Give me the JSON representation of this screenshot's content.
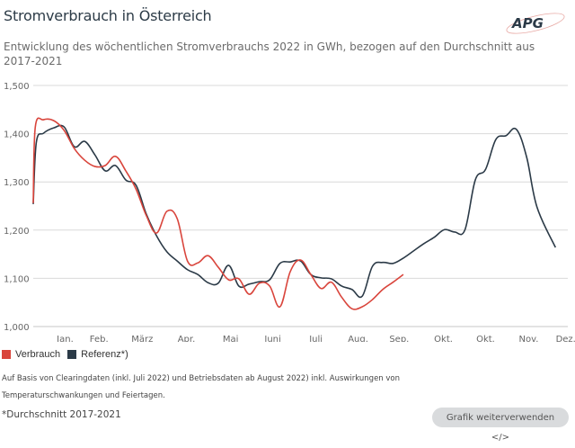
{
  "header": {
    "title": "Stromverbrauch in Österreich",
    "subtitle": "Entwicklung des wöchentlichen Stromverbrauchs 2022 in GWh, bezogen auf den Durchschnitt aus 2017-2021",
    "logo_text": "APG"
  },
  "chart_data": {
    "type": "line",
    "title": "Stromverbrauch in Österreich",
    "xlabel": "",
    "ylabel": "GWh",
    "ylim": [
      1000,
      1500
    ],
    "yticks": [
      1000,
      1100,
      1200,
      1300,
      1400,
      1500
    ],
    "ytick_labels": [
      "1,000",
      "1,100",
      "1,200",
      "1,300",
      "1,400",
      "1,500"
    ],
    "xlim_weeks": [
      0,
      52
    ],
    "xtick_labels": [
      "Jan.",
      "Feb.",
      "März",
      "Apr.",
      "Mai",
      "Juni",
      "Juli",
      "Aug.",
      "Sep.",
      "Okt.",
      "Okt.",
      "Nov.",
      "Dez."
    ],
    "xtick_weeks": [
      3.1,
      6.4,
      10.6,
      14.9,
      19.2,
      23.3,
      27.5,
      31.6,
      35.6,
      39.9,
      44,
      48.2,
      51.8
    ],
    "grid": true,
    "legend_position": "bottom-left",
    "series": [
      {
        "name": "Verbrauch",
        "color": "#d9453c",
        "weeks": [
          0,
          0.2,
          1,
          2,
          3,
          4,
          5,
          6,
          7,
          8,
          9,
          10,
          11,
          12,
          13,
          14,
          15,
          16,
          17,
          18,
          19,
          20,
          21,
          22,
          23,
          24,
          25,
          26,
          27,
          28,
          29,
          30,
          31,
          32,
          33,
          34,
          35,
          36
        ],
        "values": [
          1256,
          1414,
          1429,
          1427,
          1407,
          1369,
          1345,
          1332,
          1334,
          1353,
          1323,
          1285,
          1230,
          1194,
          1239,
          1224,
          1136,
          1132,
          1147,
          1123,
          1097,
          1099,
          1067,
          1090,
          1084,
          1041,
          1114,
          1138,
          1108,
          1079,
          1092,
          1061,
          1037,
          1041,
          1056,
          1077,
          1092,
          1108
        ]
      },
      {
        "name": "Referenz*)",
        "color": "#2b3a47",
        "weeks": [
          0,
          0.3,
          1,
          2,
          3,
          4,
          5,
          6,
          7,
          8,
          9,
          10,
          11,
          12,
          13,
          14,
          15,
          16,
          17,
          18,
          19,
          20,
          21,
          22,
          23,
          24,
          25,
          26,
          27,
          28,
          29,
          30,
          31,
          32,
          33,
          34,
          35,
          36,
          37,
          38,
          39,
          40,
          41,
          42,
          43,
          44,
          45,
          46,
          47,
          48,
          49,
          50.8
        ],
        "values": [
          1254,
          1382,
          1401,
          1412,
          1414,
          1373,
          1384,
          1356,
          1323,
          1334,
          1304,
          1293,
          1233,
          1188,
          1155,
          1136,
          1118,
          1108,
          1091,
          1090,
          1127,
          1084,
          1088,
          1093,
          1097,
          1131,
          1134,
          1136,
          1108,
          1101,
          1099,
          1084,
          1077,
          1063,
          1125,
          1133,
          1131,
          1142,
          1157,
          1172,
          1185,
          1201,
          1196,
          1201,
          1304,
          1326,
          1388,
          1396,
          1409,
          1351,
          1248,
          1164
        ]
      }
    ]
  },
  "legend": [
    {
      "label": "Verbrauch",
      "color": "#d9453c"
    },
    {
      "label": "Referenz*)",
      "color": "#2b3a47"
    }
  ],
  "notes": {
    "line1": "Auf Basis von Clearingdaten (inkl. Juli 2022) und Betriebsdaten ab August 2022) inkl. Auswirkungen von",
    "line2": "Temperaturschwankungen und Feiertagen.",
    "footnote": "*Durchschnitt 2017-2021"
  },
  "actions": {
    "reuse_button": "Grafik weiterverwenden </>"
  }
}
